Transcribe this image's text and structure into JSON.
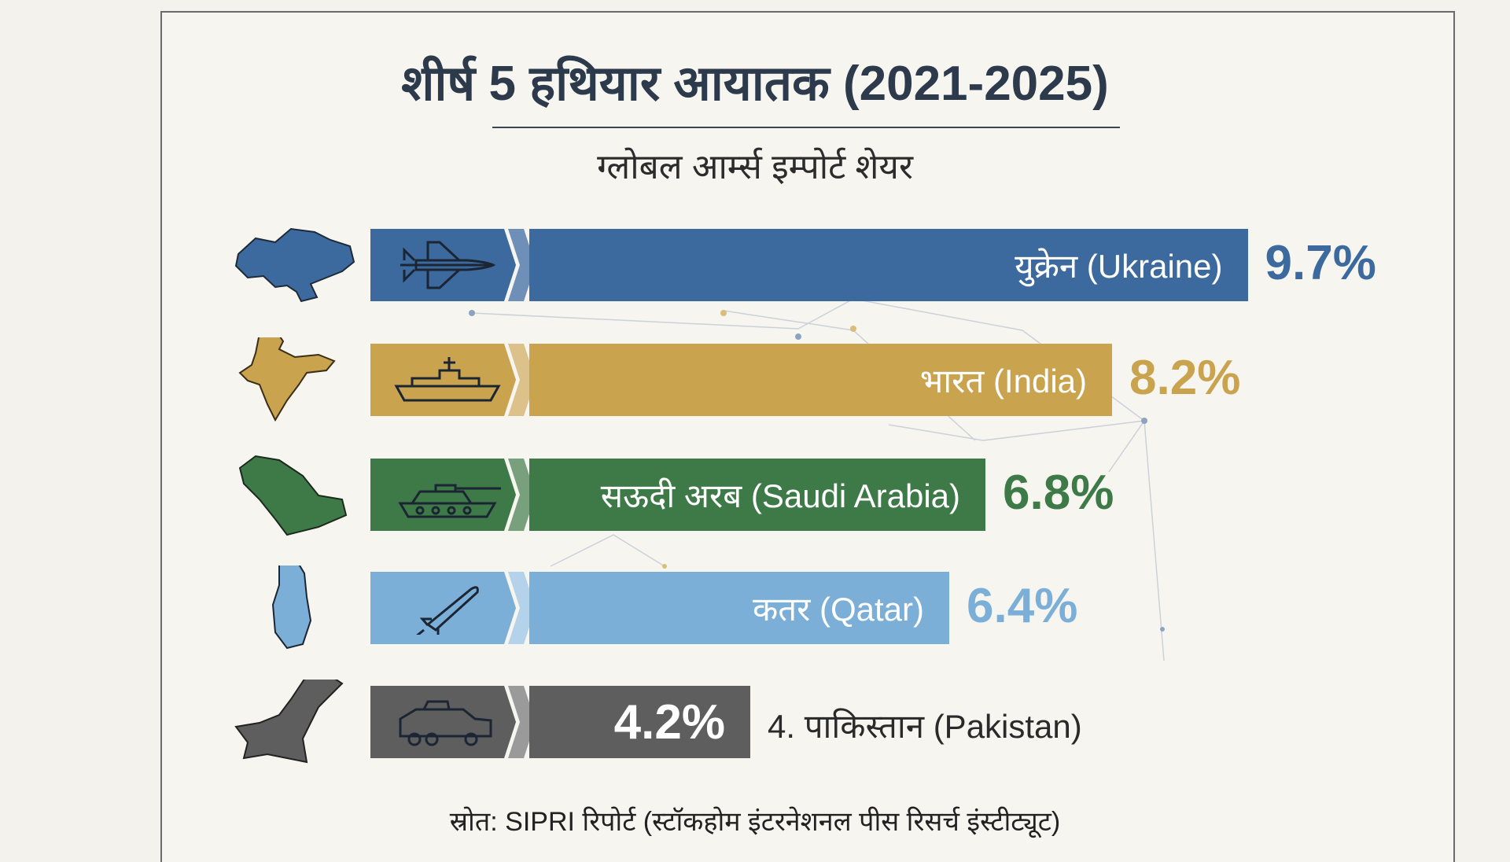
{
  "title": "शीर्ष 5 हथियार आयातक (2021-2025)",
  "subtitle": "ग्लोबल आर्म्स इम्पोर्ट शेयर",
  "source": "स्रोत: SIPRI रिपोर्ट (स्टॉकहोम इंटरनेशनल पीस रिसर्च इंस्टीट्यूट)",
  "chart_data": {
    "type": "bar",
    "orientation": "horizontal",
    "title": "शीर्ष 5 हथियार आयातक (2021-2025)",
    "subtitle": "ग्लोबल आर्म्स इम्पोर्ट शेयर",
    "unit": "%",
    "categories": [
      "युक्रेन (Ukraine)",
      "भारत (India)",
      "सऊदी अरब (Saudi Arabia)",
      "कतर (Qatar)",
      "4. पाकिस्तान (Pakistan)"
    ],
    "values": [
      9.7,
      8.2,
      6.8,
      6.4,
      4.2
    ],
    "value_labels": [
      "9.7%",
      "8.2%",
      "6.8%",
      "6.4%",
      "4.2%"
    ],
    "icons": [
      "fighter-jet-icon",
      "warship-icon",
      "tank-icon",
      "missile-icon",
      "armored-vehicle-icon"
    ],
    "colors": [
      "#3d6a9e",
      "#c9a34e",
      "#3e7a47",
      "#7bafd8",
      "#5e5e5e"
    ],
    "value_colors": [
      "#3d6a9e",
      "#c9a34e",
      "#3e7a47",
      "#7bafd8",
      "#ffffff"
    ]
  }
}
